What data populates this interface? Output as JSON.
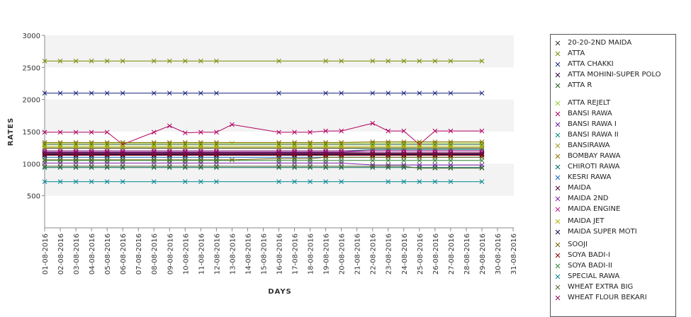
{
  "chart_data": {
    "type": "line",
    "xlabel": "DAYS",
    "ylabel": "RATES",
    "ylim": [
      0,
      3000
    ],
    "yticks": [
      500,
      1000,
      1500,
      2000,
      2500,
      3000
    ],
    "categories": [
      "01-08-2016",
      "02-08-2016",
      "03-08-2016",
      "04-08-2016",
      "05-08-2016",
      "06-08-2016",
      "07-08-2016",
      "08-08-2016",
      "09-08-2016",
      "10-08-2016",
      "11-08-2016",
      "12-08-2016",
      "13-08-2016",
      "14-08-2016",
      "15-08-2016",
      "16-08-2016",
      "17-08-2016",
      "18-08-2016",
      "19-08-2016",
      "20-08-2016",
      "21-08-2016",
      "22-08-2016",
      "23-08-2016",
      "24-08-2016",
      "25-08-2016",
      "26-08-2016",
      "27-08-2016",
      "28-08-2016",
      "29-08-2016",
      "30-08-2016",
      "31-08-2016"
    ],
    "legend_position": "right",
    "grid": "horizontal bands",
    "series": [
      {
        "name": "20-20-2ND MAIDA",
        "color": "#333333",
        "values": [
          1240,
          1240,
          1240,
          1240,
          1240,
          1240,
          null,
          1240,
          1240,
          1240,
          1240,
          1240,
          null,
          null,
          null,
          1240,
          1240,
          1240,
          1240,
          1240,
          null,
          1240,
          1240,
          1240,
          1240,
          1240,
          1240,
          null,
          1240,
          null,
          null
        ]
      },
      {
        "name": "ATTA",
        "color": "#7a8a00",
        "values": [
          2600,
          2600,
          2600,
          2600,
          2600,
          2600,
          null,
          2600,
          2600,
          2600,
          2600,
          2600,
          null,
          null,
          null,
          2600,
          null,
          null,
          2600,
          2600,
          null,
          2600,
          2600,
          2600,
          2600,
          2600,
          2600,
          null,
          2600,
          null,
          null
        ]
      },
      {
        "name": "ATTA CHAKKI",
        "color": "#1a237e",
        "values": [
          2100,
          2100,
          2100,
          2100,
          2100,
          2100,
          null,
          2100,
          2100,
          2100,
          2100,
          2100,
          null,
          null,
          null,
          2100,
          null,
          null,
          2100,
          2100,
          null,
          2100,
          2100,
          2100,
          2100,
          2100,
          2100,
          null,
          2100,
          null,
          null
        ]
      },
      {
        "name": "ATTA MOHINI-SUPER POLO",
        "color": "#2a0033",
        "values": [
          1150,
          1150,
          1150,
          1150,
          1150,
          1150,
          null,
          1150,
          1150,
          1150,
          1150,
          1150,
          null,
          null,
          null,
          1150,
          1150,
          1150,
          1150,
          1150,
          null,
          1150,
          1150,
          1150,
          1150,
          1150,
          1150,
          null,
          1150,
          null,
          null
        ]
      },
      {
        "name": "ATTA R",
        "color": "#1b5e20",
        "values": [
          1300,
          1300,
          1300,
          1300,
          1300,
          1300,
          null,
          1300,
          1300,
          1300,
          1300,
          1300,
          null,
          null,
          null,
          1300,
          1300,
          1300,
          1300,
          1300,
          null,
          1300,
          1300,
          1300,
          1300,
          1300,
          1300,
          null,
          1300,
          null,
          null
        ]
      },
      {
        "name": "ATTA REJELT",
        "color": "#9acd32",
        "values": [
          1320,
          1320,
          1320,
          1320,
          1320,
          1320,
          null,
          1320,
          1320,
          1320,
          1320,
          1320,
          1320,
          null,
          null,
          1320,
          1320,
          1320,
          1320,
          1320,
          null,
          1320,
          1320,
          1320,
          1320,
          1320,
          1320,
          null,
          1320,
          null,
          null
        ]
      },
      {
        "name": "BANSI RAWA",
        "color": "#b0005f",
        "values": [
          1490,
          1490,
          1490,
          1490,
          1490,
          1300,
          null,
          1490,
          1590,
          1480,
          1490,
          1490,
          1610,
          null,
          null,
          1490,
          1490,
          1490,
          1510,
          1510,
          null,
          1630,
          1510,
          1510,
          1300,
          1510,
          1510,
          null,
          1510,
          null,
          null
        ]
      },
      {
        "name": "BANSI RAWA I",
        "color": "#6a1b9a",
        "values": [
          1180,
          1180,
          1180,
          1180,
          1180,
          1180,
          null,
          1180,
          1180,
          1180,
          1180,
          1180,
          null,
          null,
          null,
          1180,
          1180,
          1180,
          1180,
          1180,
          null,
          1200,
          1200,
          1200,
          1200,
          1200,
          1200,
          null,
          1200,
          null,
          null
        ]
      },
      {
        "name": "BANSI RAWA II",
        "color": "#00897b",
        "values": [
          1200,
          1200,
          1200,
          1200,
          1200,
          1200,
          null,
          1200,
          1200,
          1200,
          1200,
          1200,
          null,
          null,
          null,
          1200,
          1200,
          1200,
          1200,
          1200,
          null,
          1220,
          1220,
          1220,
          1220,
          1220,
          1220,
          null,
          1220,
          null,
          null
        ]
      },
      {
        "name": "BANSIRAWA",
        "color": "#9e9d24",
        "values": [
          1250,
          1250,
          1250,
          1250,
          1250,
          1250,
          null,
          1250,
          1250,
          1250,
          1250,
          1250,
          null,
          null,
          null,
          1250,
          1250,
          1250,
          1250,
          1250,
          null,
          1250,
          1250,
          1250,
          1250,
          1250,
          1250,
          null,
          1250,
          null,
          null
        ]
      },
      {
        "name": "BOMBAY RAWA",
        "color": "#8d6e00",
        "values": [
          1330,
          1330,
          1330,
          1330,
          1330,
          1330,
          null,
          1330,
          1330,
          1330,
          1330,
          1330,
          null,
          null,
          null,
          1330,
          1330,
          1330,
          1330,
          1330,
          null,
          1340,
          1340,
          1340,
          1340,
          1340,
          1340,
          null,
          1340,
          null,
          null
        ]
      },
      {
        "name": "CHIROTI RAWA",
        "color": "#00695c",
        "values": [
          940,
          940,
          940,
          940,
          940,
          940,
          null,
          940,
          940,
          940,
          940,
          940,
          null,
          null,
          null,
          940,
          940,
          940,
          940,
          940,
          null,
          940,
          940,
          940,
          940,
          940,
          940,
          null,
          940,
          null,
          null
        ]
      },
      {
        "name": "KESRI RAWA",
        "color": "#1565c0",
        "values": [
          1100,
          1100,
          1100,
          1100,
          1100,
          1100,
          null,
          1100,
          1100,
          1100,
          1100,
          1100,
          null,
          null,
          null,
          1100,
          1100,
          1100,
          1100,
          1100,
          null,
          1100,
          1100,
          1100,
          1100,
          1100,
          1100,
          null,
          1100,
          null,
          null
        ]
      },
      {
        "name": "MAIDA",
        "color": "#4a0030",
        "values": [
          1170,
          1170,
          1170,
          1170,
          1170,
          1170,
          null,
          1170,
          1170,
          1170,
          1170,
          1170,
          null,
          null,
          null,
          1170,
          1170,
          1170,
          1170,
          1170,
          null,
          1170,
          1170,
          1170,
          1170,
          1170,
          1170,
          null,
          1170,
          null,
          null
        ]
      },
      {
        "name": "MAIDA 2ND",
        "color": "#7b1fa2",
        "values": [
          1010,
          1010,
          1010,
          1010,
          1010,
          1010,
          null,
          1010,
          1010,
          1010,
          1010,
          1010,
          null,
          null,
          null,
          1010,
          1010,
          1010,
          1010,
          1010,
          null,
          980,
          980,
          980,
          980,
          980,
          980,
          null,
          980,
          null,
          null
        ]
      },
      {
        "name": "MAIDA ENGINE",
        "color": "#c2188a",
        "values": [
          1200,
          1200,
          1200,
          1200,
          1200,
          1200,
          null,
          1200,
          1200,
          1200,
          1200,
          1200,
          null,
          null,
          null,
          1200,
          1200,
          1200,
          1200,
          1200,
          null,
          1200,
          1200,
          1200,
          1200,
          1200,
          1200,
          null,
          1200,
          null,
          null
        ]
      },
      {
        "name": "MAIDA JET",
        "color": "#aeb500",
        "values": [
          1270,
          1270,
          1270,
          1270,
          1270,
          1270,
          null,
          1270,
          1270,
          1270,
          1270,
          1270,
          null,
          null,
          null,
          1270,
          1270,
          1270,
          1270,
          1270,
          null,
          1270,
          1270,
          1270,
          1270,
          1270,
          1270,
          null,
          1270,
          null,
          null
        ]
      },
      {
        "name": "MAIDA SUPER MOTI",
        "color": "#1a0040",
        "values": [
          1140,
          1140,
          1140,
          1140,
          1140,
          1140,
          null,
          1140,
          1140,
          1140,
          1140,
          1140,
          null,
          null,
          null,
          1140,
          1140,
          1140,
          1140,
          1140,
          null,
          1140,
          1140,
          1140,
          1140,
          1140,
          1140,
          null,
          1140,
          null,
          null
        ]
      },
      {
        "name": "SOOJI",
        "color": "#6d5f00",
        "values": [
          1060,
          1060,
          1060,
          1060,
          1060,
          1060,
          null,
          1060,
          1060,
          1060,
          1060,
          1060,
          1060,
          null,
          null,
          1080,
          1080,
          1080,
          1100,
          1100,
          null,
          1100,
          1100,
          1100,
          1100,
          1100,
          1100,
          null,
          1100,
          null,
          null
        ]
      },
      {
        "name": "SOYA BADI-I",
        "color": "#8b0000",
        "values": [
          1130,
          1130,
          1130,
          1130,
          1130,
          1130,
          null,
          1130,
          1130,
          1130,
          1130,
          1130,
          null,
          null,
          null,
          1130,
          1130,
          1130,
          1130,
          1130,
          null,
          1130,
          1130,
          1130,
          1130,
          1130,
          1130,
          null,
          1130,
          null,
          null
        ]
      },
      {
        "name": "SOYA BADI-II",
        "color": "#2e7d32",
        "values": [
          1050,
          1050,
          1050,
          1050,
          1050,
          1050,
          null,
          1050,
          1050,
          1050,
          1050,
          1050,
          null,
          null,
          null,
          1050,
          1050,
          1050,
          1050,
          1050,
          null,
          1050,
          1050,
          1050,
          1050,
          1050,
          1050,
          null,
          1050,
          null,
          null
        ]
      },
      {
        "name": "SPECIAL RAWA",
        "color": "#00838f",
        "values": [
          720,
          720,
          720,
          720,
          720,
          720,
          null,
          720,
          null,
          720,
          720,
          720,
          null,
          null,
          null,
          720,
          720,
          720,
          720,
          720,
          null,
          null,
          720,
          720,
          720,
          720,
          720,
          null,
          720,
          null,
          null
        ]
      },
      {
        "name": "WHEAT EXTRA BIG",
        "color": "#556b2f",
        "values": [
          960,
          960,
          960,
          960,
          960,
          960,
          null,
          960,
          960,
          960,
          960,
          960,
          null,
          null,
          null,
          960,
          960,
          960,
          960,
          960,
          null,
          960,
          960,
          960,
          930,
          930,
          930,
          null,
          930,
          null,
          null
        ]
      },
      {
        "name": "WHEAT FLOUR BEKARI",
        "color": "#880e4f",
        "values": [
          1160,
          1160,
          1160,
          1160,
          1160,
          1160,
          null,
          1160,
          1160,
          1160,
          1160,
          1160,
          null,
          null,
          null,
          1160,
          1160,
          1160,
          1160,
          1160,
          null,
          1160,
          1160,
          1160,
          1160,
          1160,
          1160,
          null,
          1160,
          null,
          null
        ]
      }
    ]
  }
}
